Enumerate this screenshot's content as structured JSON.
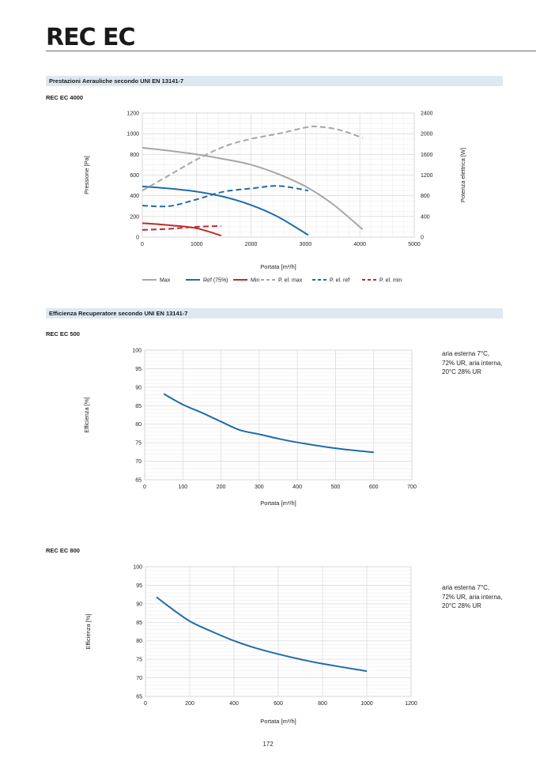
{
  "header": {
    "title": "REC EC"
  },
  "sections": [
    {
      "label": "Prestazioni Aerauliche secondo UNI EN 13141-7"
    },
    {
      "label": "Efficienza Recuperatore secondo UNI EN 13141-7"
    }
  ],
  "colors": {
    "gray": "#a6a6a6",
    "blue": "#1f6ca8",
    "red": "#c0282d",
    "grid": "#e3e3e3",
    "section_bg": "#dde9f0"
  },
  "page_number": "172",
  "chart_data": [
    {
      "type": "line",
      "title": "REC EC 4000",
      "xlabel": "Portata [m³/h]",
      "ylabel": "Pressione [Pa]",
      "y2label": "Potenza elettrica [W]",
      "xlim": [
        0,
        5000
      ],
      "ylim": [
        0,
        1200
      ],
      "y2lim": [
        0,
        2400
      ],
      "xticks": [
        "0",
        "1000",
        "2000",
        "3000",
        "4000",
        "5000"
      ],
      "yticks": [
        "0",
        "200",
        "400",
        "600",
        "800",
        "1000",
        "1200"
      ],
      "y2ticks": [
        "0",
        "400",
        "800",
        "1200",
        "1600",
        "2000",
        "2400"
      ],
      "grid": true,
      "legend_position": "bottom",
      "series": [
        {
          "name": "Max",
          "axis": "left",
          "style": "solid",
          "color": "#a6a6a6",
          "x": [
            0,
            500,
            1000,
            1500,
            2000,
            2500,
            3000,
            3500,
            4050
          ],
          "y": [
            865,
            835,
            800,
            755,
            700,
            610,
            490,
            320,
            75
          ]
        },
        {
          "name": "Ref (75%)",
          "axis": "left",
          "style": "solid",
          "color": "#1f6ca8",
          "x": [
            0,
            500,
            1000,
            1500,
            2000,
            2500,
            3050
          ],
          "y": [
            490,
            470,
            440,
            390,
            310,
            195,
            20
          ]
        },
        {
          "name": "Min",
          "axis": "left",
          "style": "solid",
          "color": "#c0282d",
          "x": [
            0,
            500,
            1000,
            1450
          ],
          "y": [
            135,
            115,
            85,
            15
          ]
        },
        {
          "name": "P. el. max",
          "axis": "right",
          "style": "dashed",
          "color": "#a6a6a6",
          "x": [
            0,
            500,
            1000,
            1500,
            2000,
            2500,
            3000,
            3200,
            3600,
            4050
          ],
          "y": [
            900,
            1200,
            1500,
            1750,
            1900,
            2000,
            2120,
            2140,
            2080,
            1920
          ]
        },
        {
          "name": "P. el. ref",
          "axis": "right",
          "style": "dashed",
          "color": "#1f6ca8",
          "x": [
            0,
            500,
            1000,
            1500,
            2000,
            2500,
            3050
          ],
          "y": [
            610,
            600,
            730,
            880,
            940,
            990,
            900
          ]
        },
        {
          "name": "P. el. min",
          "axis": "right",
          "style": "dashed",
          "color": "#c0282d",
          "x": [
            0,
            500,
            1000,
            1450
          ],
          "y": [
            140,
            160,
            200,
            215
          ]
        }
      ]
    },
    {
      "type": "line",
      "title": "REC EC 500",
      "xlabel": "Portata [m³/h]",
      "ylabel": "Efficienza [%]",
      "xlim": [
        0,
        700
      ],
      "ylim": [
        65,
        100
      ],
      "xticks": [
        "0",
        "100",
        "200",
        "300",
        "400",
        "500",
        "600",
        "700"
      ],
      "yticks": [
        "65",
        "70",
        "75",
        "80",
        "85",
        "90",
        "95",
        "100"
      ],
      "grid": true,
      "note": [
        "aria esterna 7°C,",
        "72% UR, aria interna,",
        "20°C 28% UR"
      ],
      "series": [
        {
          "name": "Efficienza",
          "color": "#1f6ca8",
          "x": [
            50,
            100,
            150,
            200,
            250,
            300,
            350,
            400,
            500,
            600
          ],
          "y": [
            88.2,
            85.3,
            83.1,
            80.7,
            78.4,
            77.3,
            76.1,
            75.1,
            73.5,
            72.4
          ]
        }
      ]
    },
    {
      "type": "line",
      "title": "REC EC 800",
      "xlabel": "Portata [m³/h]",
      "ylabel": "Efficienza [%]",
      "xlim": [
        0,
        1200
      ],
      "ylim": [
        65,
        100
      ],
      "xticks": [
        "0",
        "200",
        "400",
        "600",
        "800",
        "1000",
        "1200"
      ],
      "yticks": [
        "65",
        "70",
        "75",
        "80",
        "85",
        "90",
        "95",
        "100"
      ],
      "grid": true,
      "note": [
        "aria esterna 7°C,",
        "72% UR, aria interna,",
        "20°C 28% UR"
      ],
      "series": [
        {
          "name": "Efficienza",
          "color": "#1f6ca8",
          "x": [
            50,
            100,
            200,
            300,
            400,
            500,
            600,
            700,
            800,
            1000
          ],
          "y": [
            91.8,
            89.5,
            85.3,
            82.5,
            80.0,
            78.0,
            76.4,
            75.0,
            73.8,
            71.8
          ]
        }
      ]
    }
  ]
}
